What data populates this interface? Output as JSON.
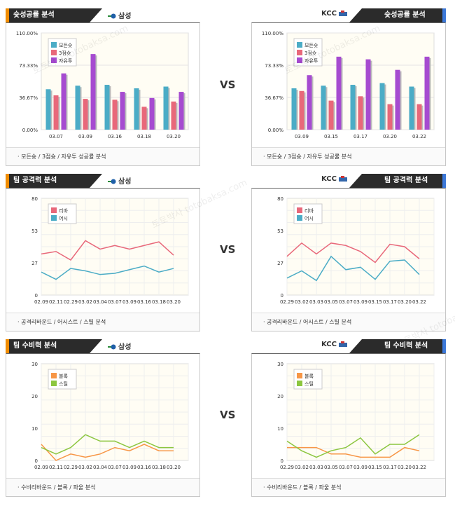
{
  "vs_label": "VS",
  "watermark": [
    "토토박사",
    "totobaksa.com"
  ],
  "rows": [
    {
      "left": {
        "title": "슛성공률 분석",
        "team": "삼성",
        "footer": "· 모든슛 / 3점슛 / 자유투 성공률 분석",
        "chart_data": {
          "type": "bar",
          "yticks": [
            "110.00%",
            "73.33%",
            "36.67%",
            "0.00%"
          ],
          "ylim": [
            0,
            110
          ],
          "categories": [
            "03.07",
            "03.09",
            "03.16",
            "03.18",
            "03.20"
          ],
          "series": [
            {
              "name": "모든슛",
              "color": "#4bacc6",
              "values": [
                46,
                50,
                51,
                47,
                49
              ]
            },
            {
              "name": "3점슛",
              "color": "#e8687a",
              "values": [
                39,
                35,
                34,
                26,
                32
              ]
            },
            {
              "name": "자유투",
              "color": "#a64bd0",
              "values": [
                64,
                86,
                43,
                36,
                43
              ]
            }
          ]
        }
      },
      "right": {
        "title": "슛성공률 분석",
        "team": "KCC",
        "footer": "· 모든슛 / 3점슛 / 자유투 성공률 분석",
        "chart_data": {
          "type": "bar",
          "yticks": [
            "110.00%",
            "73.33%",
            "36.67%",
            "0.00%"
          ],
          "ylim": [
            0,
            110
          ],
          "categories": [
            "03.09",
            "03.15",
            "03.17",
            "03.20",
            "03.22"
          ],
          "series": [
            {
              "name": "모든슛",
              "color": "#4bacc6",
              "values": [
                47,
                50,
                51,
                53,
                49
              ]
            },
            {
              "name": "3점슛",
              "color": "#e8687a",
              "values": [
                44,
                33,
                38,
                29,
                29
              ]
            },
            {
              "name": "자유투",
              "color": "#a64bd0",
              "values": [
                62,
                83,
                80,
                68,
                83
              ]
            }
          ]
        }
      }
    },
    {
      "left": {
        "title": "팀 공격력 분석",
        "team": "삼성",
        "footer": "· 공격리바운드 / 어시스트 / 스틸 분석",
        "chart_data": {
          "type": "line",
          "yticks": [
            "80",
            "53",
            "27",
            "0"
          ],
          "ylim": [
            0,
            80
          ],
          "categories": [
            "02.09",
            "02.11",
            "02.29",
            "03.02",
            "03.04",
            "03.07",
            "03.09",
            "03.16",
            "03.18",
            "03.20"
          ],
          "series": [
            {
              "name": "리바",
              "color": "#e8687a",
              "values": [
                34,
                36,
                29,
                45,
                38,
                41,
                38,
                41,
                44,
                33
              ]
            },
            {
              "name": "어시",
              "color": "#4bacc6",
              "values": [
                19,
                13,
                22,
                20,
                17,
                18,
                21,
                24,
                19,
                22
              ]
            }
          ]
        }
      },
      "right": {
        "title": "팀 공격력 분석",
        "team": "KCC",
        "footer": "· 공격리바운드 / 어시스트 / 스틸 분석",
        "chart_data": {
          "type": "line",
          "yticks": [
            "80",
            "53",
            "27",
            "0"
          ],
          "ylim": [
            0,
            80
          ],
          "categories": [
            "02.29",
            "03.02",
            "03.03",
            "03.05",
            "03.07",
            "03.09",
            "03.15",
            "03.17",
            "03.20",
            "03.22"
          ],
          "series": [
            {
              "name": "리바",
              "color": "#e8687a",
              "values": [
                32,
                43,
                34,
                43,
                41,
                36,
                27,
                42,
                40,
                30
              ]
            },
            {
              "name": "어시",
              "color": "#4bacc6",
              "values": [
                14,
                20,
                12,
                32,
                21,
                23,
                13,
                28,
                29,
                17
              ]
            }
          ]
        }
      }
    },
    {
      "left": {
        "title": "팀 수비력 분석",
        "team": "삼성",
        "footer": "· 수비리바운드 / 블록 / 파울 분석",
        "chart_data": {
          "type": "line",
          "yticks": [
            "30",
            "20",
            "10",
            "0"
          ],
          "ylim": [
            0,
            30
          ],
          "categories": [
            "02.09",
            "02.11",
            "02.29",
            "03.02",
            "03.04",
            "03.07",
            "03.09",
            "03.16",
            "03.18",
            "03.20"
          ],
          "series": [
            {
              "name": "블록",
              "color": "#f79646",
              "values": [
                5,
                0,
                2,
                1,
                2,
                4,
                3,
                5,
                3,
                3
              ]
            },
            {
              "name": "스틸",
              "color": "#8cc63f",
              "values": [
                4,
                2,
                4,
                8,
                6,
                6,
                4,
                6,
                4,
                4
              ]
            }
          ]
        }
      },
      "right": {
        "title": "팀 수비력 분석",
        "team": "KCC",
        "footer": "· 수비리바운드 / 블록 / 파울 분석",
        "chart_data": {
          "type": "line",
          "yticks": [
            "30",
            "20",
            "10",
            "0"
          ],
          "ylim": [
            0,
            30
          ],
          "categories": [
            "02.29",
            "03.02",
            "03.03",
            "03.05",
            "03.07",
            "03.09",
            "03.15",
            "03.17",
            "03.20",
            "03.22"
          ],
          "series": [
            {
              "name": "블록",
              "color": "#f79646",
              "values": [
                4,
                4,
                4,
                2,
                2,
                1,
                1,
                1,
                4,
                3
              ]
            },
            {
              "name": "스틸",
              "color": "#8cc63f",
              "values": [
                6,
                3,
                1,
                3,
                4,
                7,
                2,
                5,
                5,
                8
              ]
            }
          ]
        }
      }
    }
  ]
}
